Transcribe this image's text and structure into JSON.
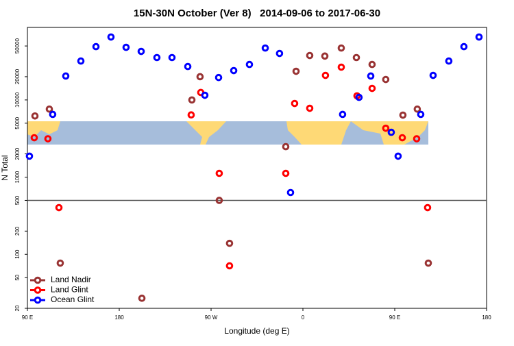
{
  "chart_data": {
    "type": "scatter",
    "title": "15N-30N October (Ver 8)   2014-09-06 to 2017-06-30",
    "x_label": "Longitude (deg E)",
    "y_label": "N Total",
    "xlim": [
      90,
      540
    ],
    "xticks": [
      {
        "value": 90,
        "label": "90 E"
      },
      {
        "value": 180,
        "label": "180"
      },
      {
        "value": 270,
        "label": "90 W"
      },
      {
        "value": 360,
        "label": "0"
      },
      {
        "value": 450,
        "label": "90 E"
      },
      {
        "value": 540,
        "label": "180"
      }
    ],
    "ylim": [
      20,
      87000
    ],
    "yticks": [
      20,
      50,
      100,
      200,
      500,
      1000,
      2000,
      5000,
      10000,
      20000,
      50000
    ],
    "log_y": true,
    "hline": 500,
    "legend": "bottom-left",
    "series": [
      {
        "name": "Land Nadir",
        "color": "#993333",
        "x": [
          97.4,
          111.5,
          122.2,
          202.2,
          251.2,
          259.2,
          278,
          288.1,
          343.2,
          353.3,
          366.7,
          381.5,
          397.6,
          412.4,
          427.8,
          441.2,
          458,
          472.1,
          482.9
        ],
        "values": [
          6200,
          7600,
          77,
          27,
          10000,
          20000,
          500,
          139,
          2480,
          23500,
          37600,
          37000,
          47000,
          35400,
          28800,
          18400,
          6360,
          7600,
          77
        ]
      },
      {
        "name": "Land Glint",
        "color": "#ff0000",
        "x": [
          96.7,
          110.1,
          120.9,
          250.5,
          259.9,
          278,
          288.1,
          343.2,
          351.9,
          366.7,
          382.1,
          397.6,
          413,
          427.8,
          441.2,
          457.4,
          471.5,
          482.2
        ],
        "values": [
          3240,
          3140,
          403,
          6400,
          12500,
          1120,
          71,
          1120,
          9000,
          7800,
          20800,
          26600,
          11300,
          14100,
          4300,
          3240,
          3140,
          403
        ]
      },
      {
        "name": "Ocean Glint",
        "color": "#0000ff",
        "x": [
          92,
          114.8,
          127.6,
          142.4,
          157.2,
          171.9,
          186.7,
          201.5,
          216.9,
          231.7,
          247.2,
          263.9,
          277.4,
          292.2,
          307.6,
          323.1,
          337.1,
          347.9,
          398.9,
          415,
          426.5,
          446.6,
          453.3,
          475.5,
          487.6,
          503,
          517.8,
          532.6
        ],
        "values": [
          1870,
          6500,
          20400,
          31900,
          49000,
          65300,
          48000,
          42500,
          35400,
          35400,
          27100,
          11500,
          19500,
          24000,
          28800,
          47000,
          40000,
          632,
          6500,
          10800,
          20400,
          3810,
          1870,
          6500,
          20800,
          31900,
          49000,
          65300
        ]
      }
    ]
  }
}
